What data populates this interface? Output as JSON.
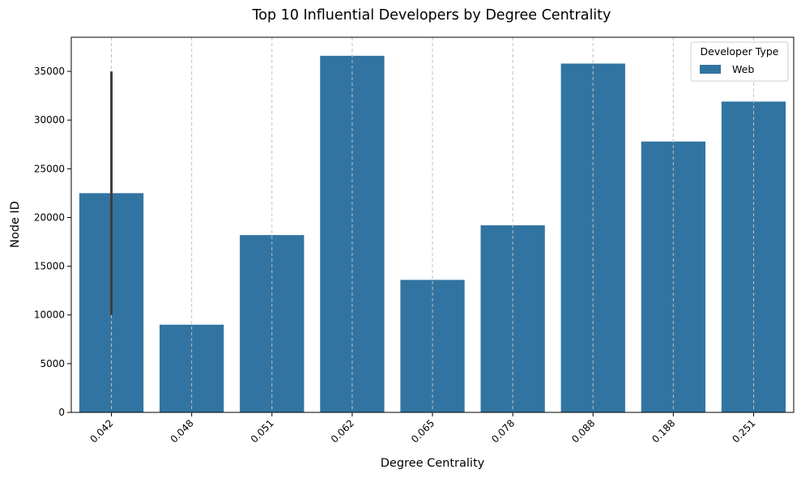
{
  "chart_data": {
    "type": "bar",
    "title": "Top 10 Influential Developers by Degree Centrality",
    "xlabel": "Degree Centrality",
    "ylabel": "Node ID",
    "categories": [
      "0.042",
      "0.048",
      "0.051",
      "0.062",
      "0.065",
      "0.078",
      "0.088",
      "0.188",
      "0.251"
    ],
    "series": [
      {
        "name": "Web",
        "values": [
          22500,
          9000,
          18200,
          36600,
          13600,
          19200,
          35800,
          27800,
          31900
        ]
      }
    ],
    "error_bars": [
      {
        "category": "0.042",
        "low": 10000,
        "high": 35000
      }
    ],
    "ylim": [
      0,
      38500
    ],
    "yticks": [
      0,
      5000,
      10000,
      15000,
      20000,
      25000,
      30000,
      35000
    ],
    "grid": "x-dashed",
    "legend": {
      "title": "Developer Type",
      "placement": "top-right"
    },
    "colors": {
      "bar": "#3274a1",
      "error_bar": "#3d3d3d",
      "grid": "#c0c0c0"
    }
  }
}
